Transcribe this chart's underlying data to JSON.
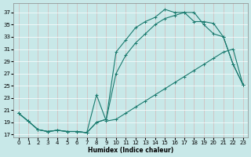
{
  "xlabel": "Humidex (Indice chaleur)",
  "bg_color": "#c8e8e8",
  "grid_color": "#aacccc",
  "line_color": "#1a7a6e",
  "xlim": [
    -0.5,
    23.5
  ],
  "ylim": [
    16.5,
    38.5
  ],
  "xticks": [
    0,
    1,
    2,
    3,
    4,
    5,
    6,
    7,
    8,
    9,
    10,
    11,
    12,
    13,
    14,
    15,
    16,
    17,
    18,
    19,
    20,
    21,
    22,
    23
  ],
  "yticks": [
    17,
    19,
    21,
    23,
    25,
    27,
    29,
    31,
    33,
    35,
    37
  ],
  "line1_x": [
    0,
    1,
    2,
    3,
    4,
    5,
    6,
    7,
    8,
    9,
    10,
    11,
    12,
    13,
    14,
    15,
    16,
    17,
    18,
    19,
    20,
    21,
    22,
    23
  ],
  "line1_y": [
    20.5,
    19.2,
    17.8,
    17.5,
    17.7,
    17.5,
    17.5,
    17.3,
    19.0,
    19.5,
    30.5,
    32.5,
    34.5,
    35.5,
    36.2,
    37.5,
    37.0,
    37.0,
    37.0,
    35.0,
    33.5,
    33.0,
    28.5,
    25.2
  ],
  "line2_x": [
    0,
    1,
    2,
    3,
    4,
    5,
    6,
    7,
    8,
    9,
    10,
    11,
    12,
    13,
    14,
    15,
    16,
    17,
    18,
    19,
    20,
    21,
    22,
    23
  ],
  "line2_y": [
    20.5,
    19.2,
    17.8,
    17.5,
    17.7,
    17.5,
    17.5,
    17.3,
    19.0,
    19.5,
    27.0,
    30.0,
    32.0,
    33.5,
    35.0,
    36.0,
    36.5,
    37.0,
    35.5,
    35.5,
    35.2,
    33.0,
    28.5,
    25.2
  ],
  "line3_x": [
    0,
    1,
    2,
    3,
    4,
    5,
    6,
    7,
    8,
    9,
    10,
    11,
    12,
    13,
    14,
    15,
    16,
    17,
    18,
    19,
    20,
    21,
    22,
    23
  ],
  "line3_y": [
    20.5,
    19.2,
    17.8,
    17.5,
    17.7,
    17.5,
    17.5,
    17.3,
    23.5,
    19.2,
    19.5,
    20.5,
    21.5,
    22.5,
    23.5,
    24.5,
    25.5,
    26.5,
    27.5,
    28.5,
    29.5,
    30.5,
    31.0,
    25.2
  ],
  "xlabel_fontsize": 5.5,
  "tick_fontsize": 5
}
